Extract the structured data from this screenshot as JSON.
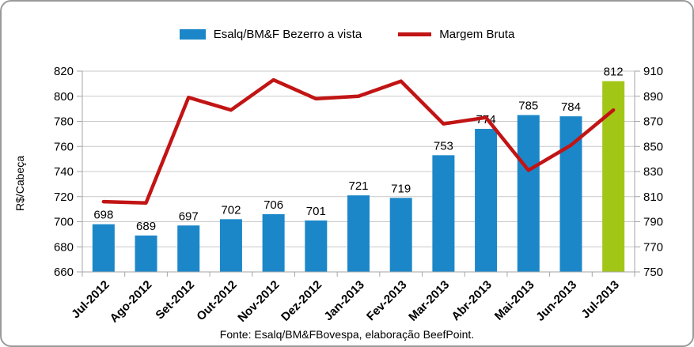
{
  "legend": {
    "series1": "Esalq/BM&F Bezerro a vista",
    "series2": "Margem Bruta"
  },
  "y_axis_title": "R$/Cabeça",
  "footer": "Fonte: Esalq/BM&FBovespa, elaboração BeefPoint.",
  "chart_data": {
    "type": "bar+line combo",
    "categories": [
      "Jul-2012",
      "Ago-2012",
      "Set-2012",
      "Out-2012",
      "Nov-2012",
      "Dez-2012",
      "Jan-2013",
      "Fev-2013",
      "Mar-2013",
      "Abr-2013",
      "Mai-2013",
      "Jun-2013",
      "Jul-2013"
    ],
    "series": [
      {
        "name": "Esalq/BM&F Bezerro a vista",
        "type": "bar",
        "axis": "left",
        "values": [
          698,
          689,
          697,
          702,
          706,
          701,
          721,
          719,
          753,
          774,
          785,
          784,
          812
        ],
        "color": "#1b87c9",
        "last_bar_color": "#a2c616",
        "data_labels": true
      },
      {
        "name": "Margem Bruta",
        "type": "line",
        "axis": "right",
        "values": [
          806,
          805,
          889,
          879,
          903,
          888,
          890,
          902,
          868,
          873,
          831,
          851,
          879
        ],
        "color": "#c21414"
      }
    ],
    "left_axis": {
      "label": "R$/Cabeça",
      "min": 660,
      "max": 820,
      "step": 20
    },
    "right_axis": {
      "min": 750,
      "max": 910,
      "step": 20
    },
    "grid": true,
    "legend_position": "top",
    "colors": {
      "grid": "#c9c9c9",
      "axis": "#a6a6a6",
      "text": "#000000"
    }
  }
}
